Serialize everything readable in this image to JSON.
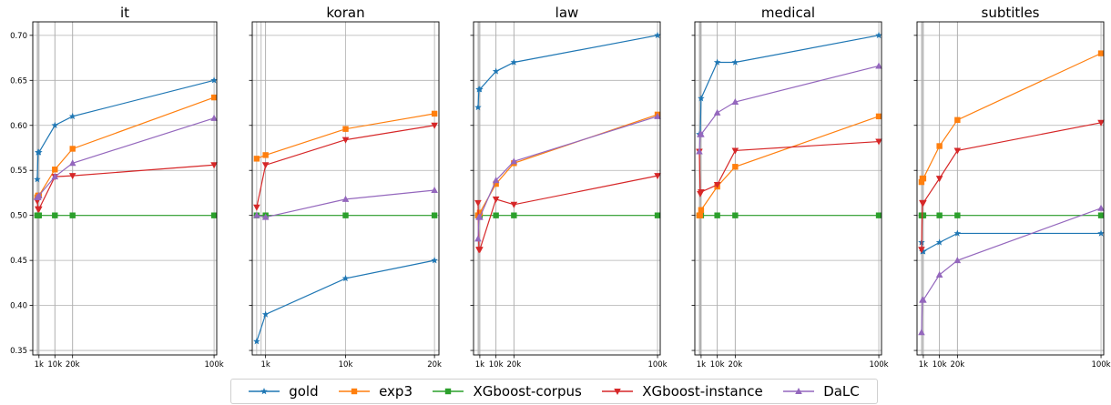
{
  "chart_data": [
    {
      "type": "line",
      "title": "it",
      "x_tick_labels": [
        "1k",
        "10k",
        "20k",
        "100k"
      ],
      "x_ticks": [
        1000,
        10000,
        20000,
        100000
      ],
      "y_ticks": [
        "0.35",
        "0.40",
        "0.45",
        "0.50",
        "0.55",
        "0.60",
        "0.65",
        "0.70"
      ],
      "ylim": [
        0.345,
        0.715
      ],
      "xlim": [
        -2500,
        101500
      ],
      "vlines": [
        0,
        500,
        1000,
        10000,
        20000
      ],
      "grid": true,
      "series": [
        {
          "name": "gold",
          "x": [
            0,
            500,
            1000,
            10000,
            20000,
            100000
          ],
          "y": [
            0.54,
            0.57,
            0.57,
            0.6,
            0.61,
            0.65
          ]
        },
        {
          "name": "exp3",
          "x": [
            0,
            500,
            1000,
            10000,
            20000,
            100000
          ],
          "y": [
            0.52,
            0.522,
            0.522,
            0.551,
            0.574,
            0.631
          ]
        },
        {
          "name": "XGboost-corpus",
          "x": [
            0,
            500,
            1000,
            10000,
            20000,
            100000
          ],
          "y": [
            0.5,
            0.5,
            0.5,
            0.5,
            0.5,
            0.5
          ]
        },
        {
          "name": "XGboost-instance",
          "x": [
            0,
            500,
            1000,
            10000,
            20000,
            100000
          ],
          "y": [
            0.516,
            0.507,
            0.507,
            0.543,
            0.544,
            0.556
          ]
        },
        {
          "name": "DaLC",
          "x": [
            0,
            500,
            1000,
            10000,
            20000,
            100000
          ],
          "y": [
            0.52,
            0.52,
            0.522,
            0.543,
            0.558,
            0.608
          ]
        }
      ]
    },
    {
      "type": "line",
      "title": "koran",
      "x_tick_labels": [
        "1k",
        "10k",
        "20k"
      ],
      "x_ticks": [
        1000,
        10000,
        20000
      ],
      "y_ticks": [
        "0.35",
        "0.40",
        "0.45",
        "0.50",
        "0.55",
        "0.60",
        "0.65",
        "0.70"
      ],
      "ylim": [
        0.345,
        0.715
      ],
      "xlim": [
        -500,
        20500
      ],
      "vlines": [
        0,
        500,
        1000
      ],
      "grid": true,
      "series": [
        {
          "name": "gold",
          "x": [
            0,
            1000,
            10000,
            20000
          ],
          "y": [
            0.36,
            0.39,
            0.43,
            0.45
          ]
        },
        {
          "name": "exp3",
          "x": [
            0,
            1000,
            10000,
            20000
          ],
          "y": [
            0.563,
            0.567,
            0.596,
            0.613
          ]
        },
        {
          "name": "XGboost-corpus",
          "x": [
            0,
            1000,
            10000,
            20000
          ],
          "y": [
            0.5,
            0.5,
            0.5,
            0.5
          ]
        },
        {
          "name": "XGboost-instance",
          "x": [
            0,
            1000,
            10000,
            20000
          ],
          "y": [
            0.509,
            0.556,
            0.584,
            0.6
          ]
        },
        {
          "name": "DaLC",
          "x": [
            0,
            1000,
            10000,
            20000
          ],
          "y": [
            0.5,
            0.498,
            0.518,
            0.528
          ]
        }
      ]
    },
    {
      "type": "line",
      "title": "law",
      "x_tick_labels": [
        "1k",
        "10k",
        "20k",
        "100k"
      ],
      "x_ticks": [
        1000,
        10000,
        20000,
        100000
      ],
      "y_ticks": [
        "0.35",
        "0.40",
        "0.45",
        "0.50",
        "0.55",
        "0.60",
        "0.65",
        "0.70"
      ],
      "ylim": [
        0.345,
        0.715
      ],
      "xlim": [
        -2500,
        101500
      ],
      "vlines": [
        0,
        500,
        1000,
        10000,
        20000
      ],
      "grid": true,
      "series": [
        {
          "name": "gold",
          "x": [
            0,
            500,
            1000,
            10000,
            20000,
            100000
          ],
          "y": [
            0.62,
            0.64,
            0.64,
            0.66,
            0.67,
            0.7
          ]
        },
        {
          "name": "exp3",
          "x": [
            0,
            500,
            1000,
            10000,
            20000,
            100000
          ],
          "y": [
            0.5,
            0.5,
            0.503,
            0.535,
            0.558,
            0.612
          ]
        },
        {
          "name": "XGboost-corpus",
          "x": [
            0,
            500,
            1000,
            10000,
            20000,
            100000
          ],
          "y": [
            0.5,
            0.5,
            0.5,
            0.5,
            0.5,
            0.5
          ]
        },
        {
          "name": "XGboost-instance",
          "x": [
            0,
            500,
            1000,
            10000,
            20000,
            100000
          ],
          "y": [
            0.514,
            0.462,
            0.462,
            0.518,
            0.512,
            0.544
          ]
        },
        {
          "name": "DaLC",
          "x": [
            0,
            500,
            1000,
            10000,
            20000,
            100000
          ],
          "y": [
            0.474,
            0.498,
            0.498,
            0.539,
            0.56,
            0.61
          ]
        }
      ]
    },
    {
      "type": "line",
      "title": "medical",
      "x_tick_labels": [
        "1k",
        "10k",
        "20k",
        "100k"
      ],
      "x_ticks": [
        1000,
        10000,
        20000,
        100000
      ],
      "y_ticks": [
        "0.35",
        "0.40",
        "0.45",
        "0.50",
        "0.55",
        "0.60",
        "0.65",
        "0.70"
      ],
      "ylim": [
        0.345,
        0.715
      ],
      "xlim": [
        -2500,
        101500
      ],
      "vlines": [
        0,
        300,
        600,
        1000,
        10000,
        20000
      ],
      "grid": true,
      "series": [
        {
          "name": "gold",
          "x": [
            0,
            500,
            1000,
            10000,
            20000,
            100000
          ],
          "y": [
            0.59,
            0.59,
            0.63,
            0.67,
            0.67,
            0.7
          ]
        },
        {
          "name": "exp3",
          "x": [
            0,
            500,
            1000,
            10000,
            20000,
            100000
          ],
          "y": [
            0.5,
            0.5,
            0.506,
            0.532,
            0.554,
            0.61
          ]
        },
        {
          "name": "XGboost-corpus",
          "x": [
            0,
            500,
            1000,
            10000,
            20000,
            100000
          ],
          "y": [
            0.5,
            0.5,
            0.5,
            0.5,
            0.5,
            0.5
          ]
        },
        {
          "name": "XGboost-instance",
          "x": [
            0,
            500,
            1000,
            10000,
            20000,
            100000
          ],
          "y": [
            0.571,
            0.524,
            0.526,
            0.534,
            0.572,
            0.582
          ]
        },
        {
          "name": "DaLC",
          "x": [
            0,
            500,
            1000,
            10000,
            20000,
            100000
          ],
          "y": [
            0.571,
            0.59,
            0.59,
            0.614,
            0.626,
            0.666
          ]
        }
      ]
    },
    {
      "type": "line",
      "title": "subtitles",
      "x_tick_labels": [
        "1k",
        "10k",
        "20k",
        "100k"
      ],
      "x_ticks": [
        1000,
        10000,
        20000,
        100000
      ],
      "y_ticks": [
        "0.35",
        "0.40",
        "0.45",
        "0.50",
        "0.55",
        "0.60",
        "0.65",
        "0.70"
      ],
      "ylim": [
        0.345,
        0.715
      ],
      "xlim": [
        -2500,
        101500
      ],
      "vlines": [
        0,
        500,
        1000,
        10000,
        20000
      ],
      "grid": true,
      "series": [
        {
          "name": "gold",
          "x": [
            0,
            500,
            1000,
            10000,
            20000,
            100000
          ],
          "y": [
            0.47,
            0.46,
            0.46,
            0.47,
            0.48,
            0.48
          ]
        },
        {
          "name": "exp3",
          "x": [
            0,
            500,
            1000,
            10000,
            20000,
            100000
          ],
          "y": [
            0.537,
            0.541,
            0.541,
            0.577,
            0.606,
            0.68
          ]
        },
        {
          "name": "XGboost-corpus",
          "x": [
            0,
            500,
            1000,
            10000,
            20000,
            100000
          ],
          "y": [
            0.5,
            0.5,
            0.5,
            0.5,
            0.5,
            0.5
          ]
        },
        {
          "name": "XGboost-instance",
          "x": [
            0,
            500,
            1000,
            10000,
            20000,
            100000
          ],
          "y": [
            0.462,
            0.514,
            0.514,
            0.541,
            0.572,
            0.603
          ]
        },
        {
          "name": "DaLC",
          "x": [
            0,
            500,
            1000,
            10000,
            20000,
            100000
          ],
          "y": [
            0.37,
            0.406,
            0.406,
            0.434,
            0.45,
            0.508
          ]
        }
      ]
    }
  ],
  "legend": {
    "placement": "bottom-center",
    "items": [
      {
        "name": "gold",
        "color": "#1f77b4",
        "marker": "star"
      },
      {
        "name": "exp3",
        "color": "#ff7f0e",
        "marker": "square"
      },
      {
        "name": "XGboost-corpus",
        "color": "#2ca02c",
        "marker": "square"
      },
      {
        "name": "XGboost-instance",
        "color": "#d62728",
        "marker": "triangle-down"
      },
      {
        "name": "DaLC",
        "color": "#9467bd",
        "marker": "triangle-up"
      }
    ]
  },
  "series_styles": {
    "gold": {
      "color": "#1f77b4",
      "marker": "star"
    },
    "exp3": {
      "color": "#ff7f0e",
      "marker": "square"
    },
    "XGboost-corpus": {
      "color": "#2ca02c",
      "marker": "square"
    },
    "XGboost-instance": {
      "color": "#d62728",
      "marker": "triangle-down"
    },
    "DaLC": {
      "color": "#9467bd",
      "marker": "triangle-up"
    }
  }
}
